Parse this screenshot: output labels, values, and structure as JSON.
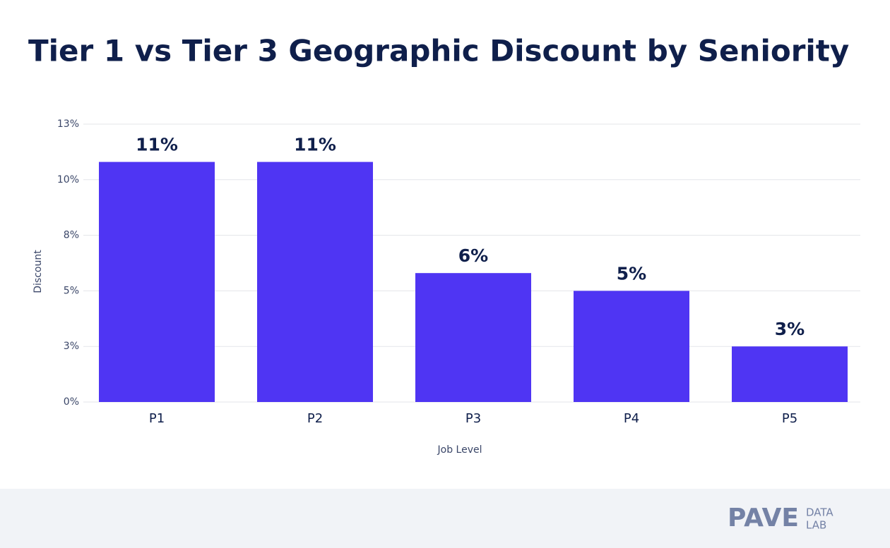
{
  "chart_data": {
    "type": "bar",
    "title": "Tier 1 vs Tier 3 Geographic Discount by Seniority",
    "x_label": "Job Level",
    "y_label": "Discount",
    "categories": [
      "P1",
      "P2",
      "P3",
      "P4",
      "P5"
    ],
    "values": [
      10.8,
      10.8,
      5.8,
      5.0,
      2.5
    ],
    "value_labels": [
      "11%",
      "11%",
      "6%",
      "5%",
      "3%"
    ],
    "color": "#4f35f3",
    "ylim": [
      0,
      12.5
    ],
    "yticks": [
      {
        "value": 0,
        "label": "0%"
      },
      {
        "value": 2.5,
        "label": "3%"
      },
      {
        "value": 5,
        "label": "5%"
      },
      {
        "value": 7.5,
        "label": "8%"
      },
      {
        "value": 10,
        "label": "10%"
      },
      {
        "value": 12.5,
        "label": "13%"
      }
    ],
    "grid": true
  },
  "footer": {
    "brand": "PAVE",
    "brand_sub_1": "DATA",
    "brand_sub_2": "LAB"
  }
}
